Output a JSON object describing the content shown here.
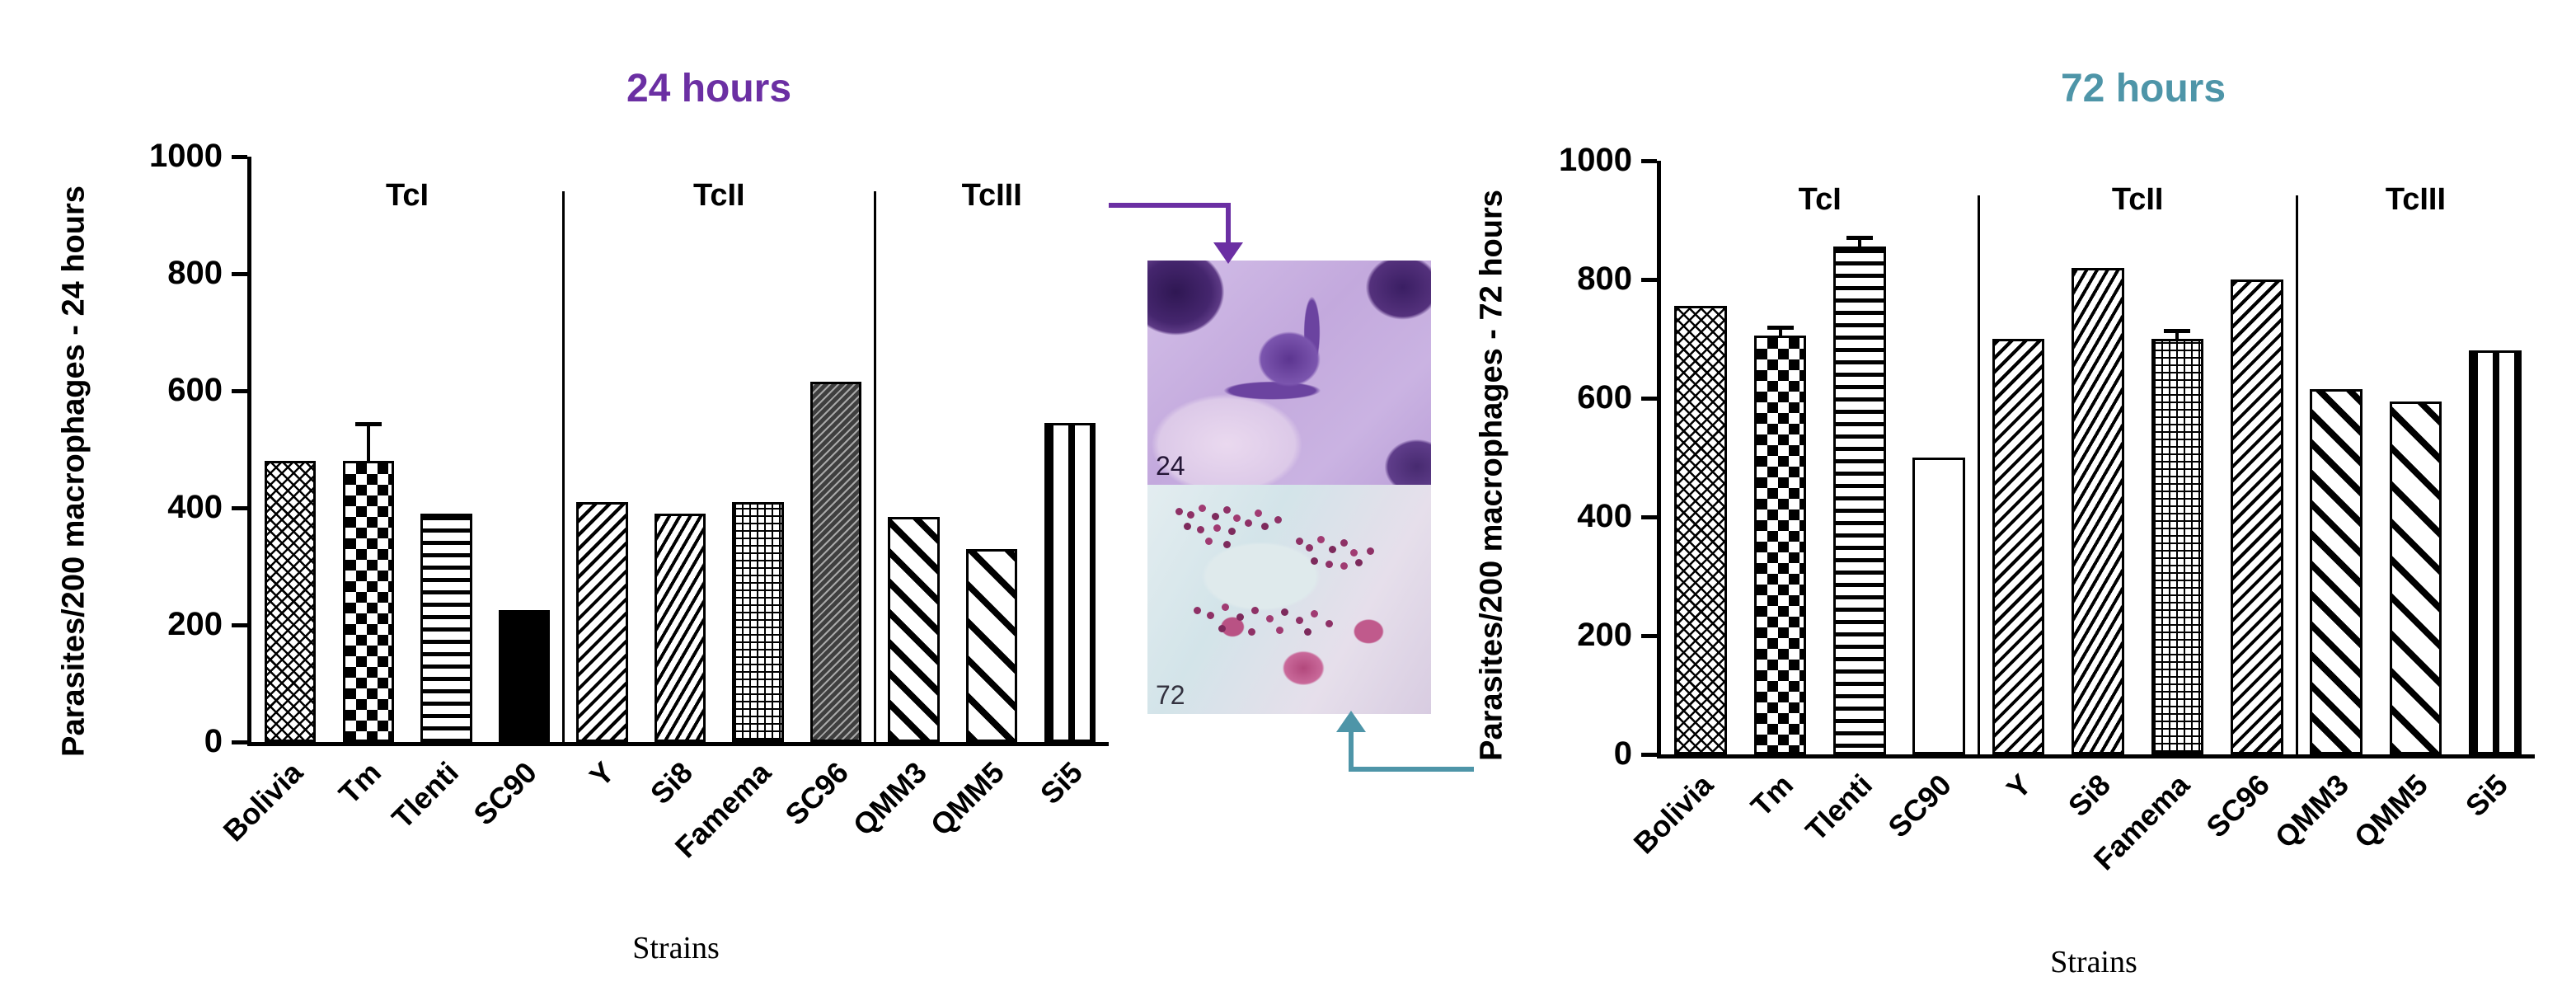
{
  "micro": {
    "top_label": "24",
    "bottom_label": "72"
  },
  "arrows": {
    "purple": "#6b2fa3",
    "teal": "#4e95a8"
  },
  "chart_data": [
    {
      "type": "bar",
      "title": "24 hours",
      "title_color": "#6b2fa3",
      "ylabel": "Parasites/200 macrophages - 24 hours",
      "xlabel": "Strains",
      "ylim": [
        0,
        1000
      ],
      "yticks": [
        0,
        200,
        400,
        600,
        800,
        1000
      ],
      "categories": [
        "Bolivia",
        "Tm",
        "Tlenti",
        "SC90",
        "Y",
        "Si8",
        "Famema",
        "SC96",
        "QMM3",
        "QMM5",
        "Si5"
      ],
      "values": [
        480,
        480,
        390,
        225,
        410,
        390,
        410,
        615,
        385,
        330,
        545
      ],
      "errors": [
        0,
        60,
        0,
        0,
        0,
        0,
        0,
        0,
        0,
        0,
        0
      ],
      "patterns": [
        "crosshatch",
        "checker",
        "hlines",
        "solid",
        "diag1",
        "diag2",
        "grid",
        "graydiag",
        "wide1",
        "wide2",
        "vlines"
      ],
      "groups": [
        {
          "label": "TcI",
          "span": [
            0,
            3
          ]
        },
        {
          "label": "TcII",
          "span": [
            4,
            7
          ]
        },
        {
          "label": "TcIII",
          "span": [
            8,
            10
          ]
        }
      ],
      "dividers": [
        4,
        8
      ],
      "grid": "off",
      "legend": "none"
    },
    {
      "type": "bar",
      "title": "72 hours",
      "title_color": "#4e95a8",
      "ylabel": "Parasites/200 macrophages - 72 hours",
      "xlabel": "Strains",
      "ylim": [
        0,
        1000
      ],
      "yticks": [
        0,
        200,
        400,
        600,
        800,
        1000
      ],
      "categories": [
        "Bolivia",
        "Tm",
        "Tlenti",
        "SC90",
        "Y",
        "Si8",
        "Famema",
        "SC96",
        "QMM3",
        "QMM5",
        "Si5"
      ],
      "values": [
        755,
        705,
        855,
        500,
        700,
        820,
        700,
        800,
        615,
        595,
        680
      ],
      "errors": [
        0,
        10,
        12,
        0,
        0,
        0,
        10,
        0,
        0,
        0,
        0
      ],
      "patterns": [
        "crosshatch",
        "checker",
        "hlines",
        "open",
        "diag1",
        "diag2",
        "grid",
        "diag1",
        "wide1",
        "wide2",
        "vlines"
      ],
      "groups": [
        {
          "label": "TcI",
          "span": [
            0,
            3
          ]
        },
        {
          "label": "TcII",
          "span": [
            4,
            7
          ]
        },
        {
          "label": "TcIII",
          "span": [
            8,
            10
          ]
        }
      ],
      "dividers": [
        4,
        8
      ],
      "grid": "off",
      "legend": "none"
    }
  ]
}
